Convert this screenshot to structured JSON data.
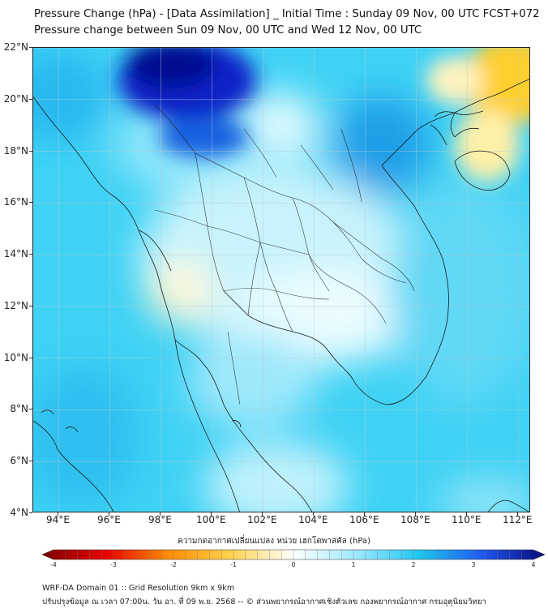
{
  "title_line1": "Pressure Change (hPa) - [Data Assimilation] _ Initial Time : Sunday 09 Nov, 00 UTC FCST+072",
  "title_line2": "Pressure change between Sun 09 Nov, 00 UTC and Wed 12 Nov, 00 UTC",
  "map": {
    "lon_range": [
      93,
      112.5
    ],
    "lat_range": [
      4,
      22
    ],
    "lat_labels": [
      "22°N",
      "20°N",
      "18°N",
      "16°N",
      "14°N",
      "12°N",
      "10°N",
      "8°N",
      "6°N",
      "4°N"
    ],
    "lon_labels": [
      "94°E",
      "96°E",
      "98°E",
      "100°E",
      "102°E",
      "104°E",
      "106°E",
      "108°E",
      "110°E",
      "112°E"
    ],
    "gridlines": true
  },
  "colorbar": {
    "label": "ความกดอากาศเปลี่ยนแปลง หน่วย เฮกโตพาสคัล (hPa)",
    "min": -4,
    "max": 4,
    "tick_labels": [
      "-4",
      "-3",
      "-2",
      "-1",
      "0",
      "1",
      "2",
      "3",
      "4"
    ],
    "colors": {
      "neg4": "#7a0000",
      "neg3": "#e60000",
      "neg2": "#ff8c00",
      "neg1": "#ffd24d",
      "zero": "#ffffff",
      "pos1": "#9ee8ff",
      "pos2": "#1ec8f0",
      "pos3": "#1e5af0",
      "pos4": "#08087a"
    }
  },
  "footer": {
    "line1": "WRF-DA Domain 01 :: Grid Resolution 9km x 9km",
    "line2": "ปรับปรุงข้อมูล ณ เวลา 07:00น. วัน อา. ที่ 09 พ.ย. 2568 -- © ส่วนพยากรณ์อากาศเชิงตัวเลข กองพยากรณ์อากาศ กรมอุตุนิยมวิทยา"
  }
}
